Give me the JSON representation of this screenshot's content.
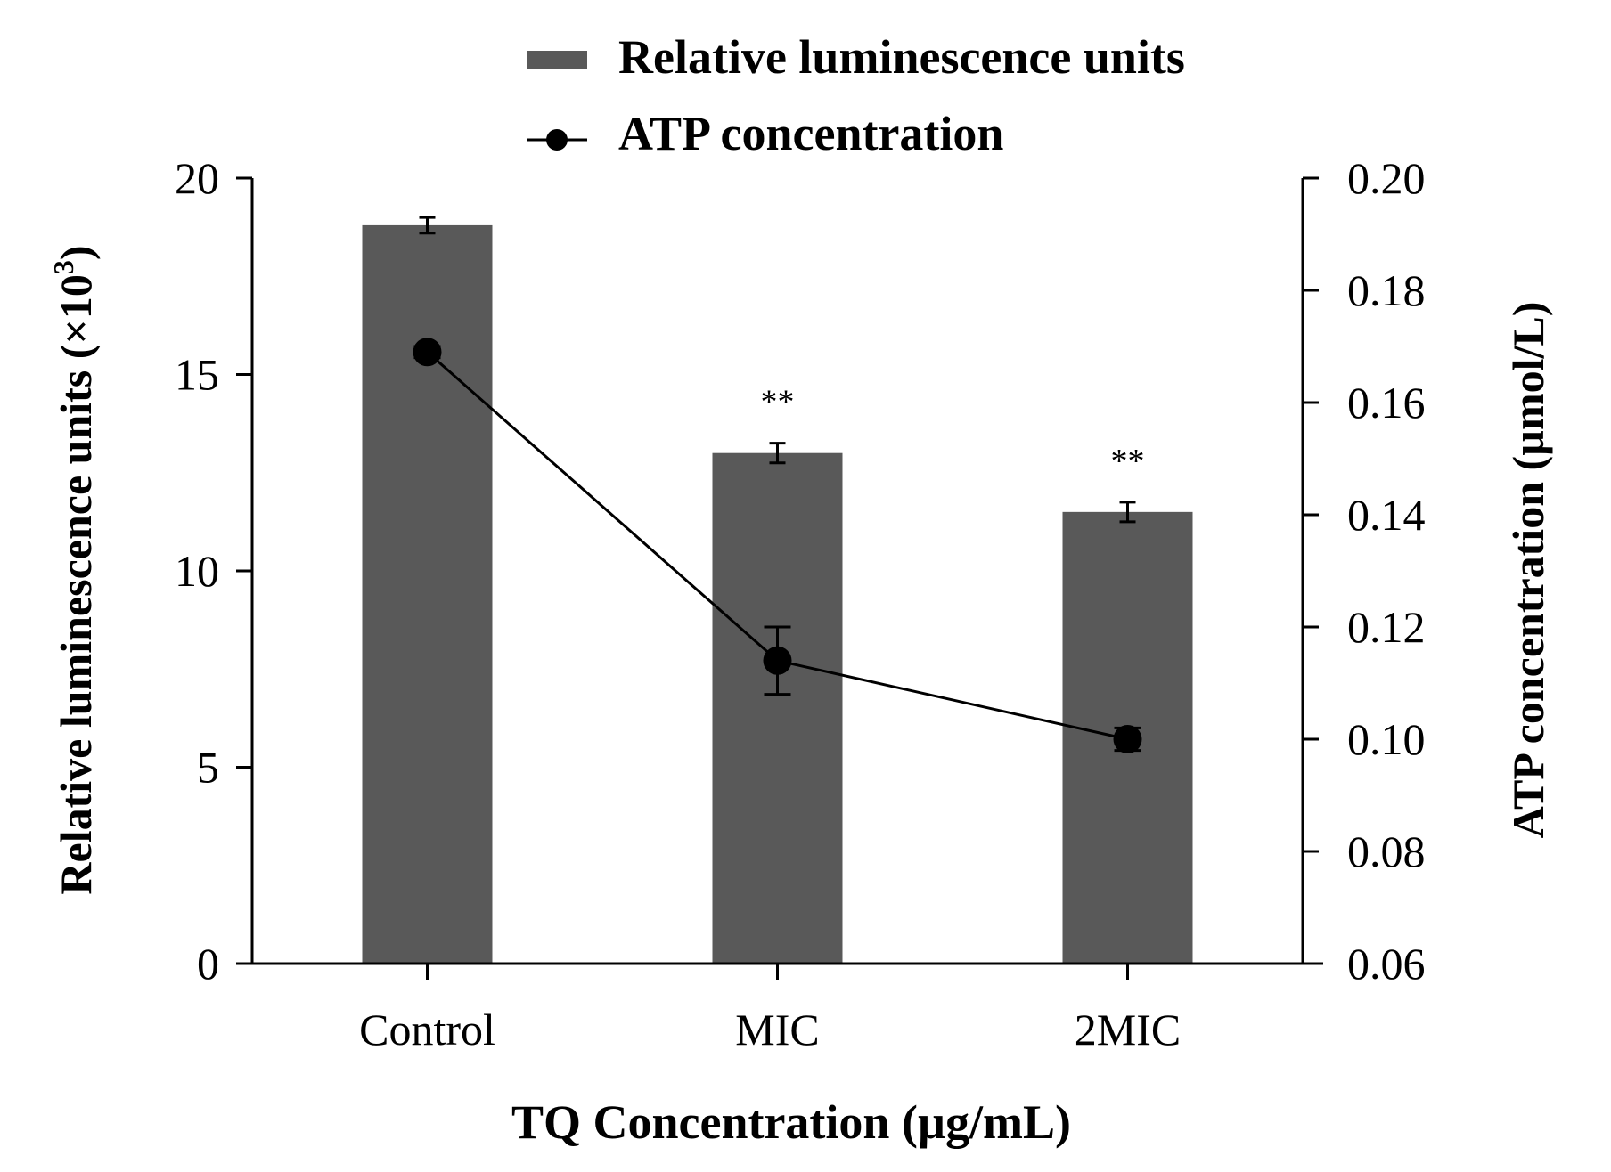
{
  "chart_data": {
    "type": "bar",
    "title": "",
    "categories": [
      "Control",
      "MIC",
      "2MIC"
    ],
    "xlabel": "TQ Concentration (µg/mL)",
    "ylabel_left": {
      "main": "Relative luminescence units (×10",
      "superscript": "3",
      "close": ")"
    },
    "ylabel_right": "ATP concentration (µmol/L)",
    "legend_position": "top-center",
    "grid": false,
    "left_axis": {
      "ylim": [
        0,
        20
      ],
      "ticks": [
        0,
        5,
        10,
        15,
        20
      ],
      "tick_labels": [
        "0",
        "5",
        "10",
        "15",
        "20"
      ]
    },
    "right_axis": {
      "ylim": [
        0.06,
        0.2
      ],
      "ticks": [
        0.06,
        0.08,
        0.1,
        0.12,
        0.14,
        0.16,
        0.18,
        0.2
      ],
      "tick_labels": [
        "0.06",
        "0.08",
        "0.10",
        "0.12",
        "0.14",
        "0.16",
        "0.18",
        "0.20"
      ]
    },
    "series": [
      {
        "name": "Relative luminescence units",
        "type": "bar",
        "axis": "left",
        "color": "#595959",
        "values": [
          18.8,
          13.0,
          11.5
        ],
        "errors": [
          0.2,
          0.25,
          0.25
        ],
        "annotations": [
          "",
          "**",
          "**"
        ]
      },
      {
        "name": "ATP concentration",
        "type": "line",
        "axis": "right",
        "color": "#000000",
        "values": [
          0.169,
          0.114,
          0.1
        ],
        "errors": [
          0.001,
          0.006,
          0.002
        ]
      }
    ]
  }
}
